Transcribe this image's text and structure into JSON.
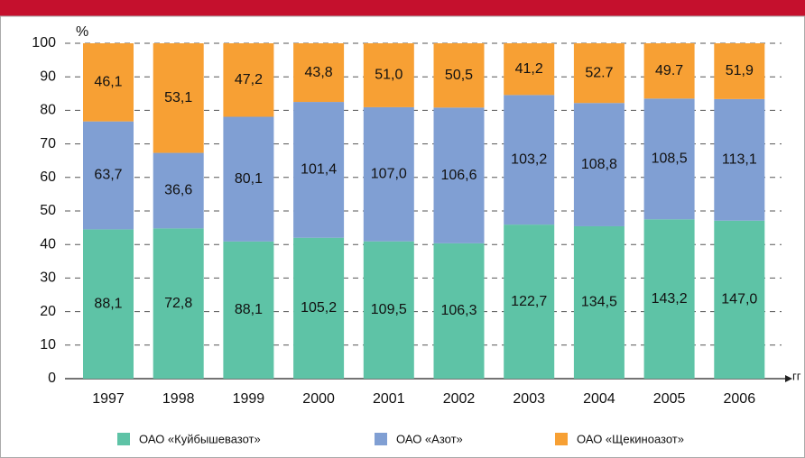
{
  "chart_data": {
    "type": "bar",
    "stacking": "percent",
    "y_unit": "%",
    "x_unit": "гг",
    "categories": [
      "1997",
      "1998",
      "1999",
      "2000",
      "2001",
      "2002",
      "2003",
      "2004",
      "2005",
      "2006"
    ],
    "series": [
      {
        "name": "ОАО «Куйбышевазот»",
        "color": "#5ec3a6",
        "values": [
          88.1,
          72.8,
          88.1,
          105.2,
          109.5,
          106.3,
          122.7,
          134.5,
          143.2,
          147.0
        ],
        "value_labels": [
          "88,1",
          "72,8",
          "88,1",
          "105,2",
          "109,5",
          "106,3",
          "122,7",
          "134,5",
          "143,2",
          "147,0"
        ]
      },
      {
        "name": "ОАО «Азот»",
        "color": "#809fd3",
        "values": [
          63.7,
          36.6,
          80.1,
          101.4,
          107.0,
          106.6,
          103.2,
          108.8,
          108.5,
          113.1
        ],
        "value_labels": [
          "63,7",
          "36,6",
          "80,1",
          "101,4",
          "107,0",
          "106,6",
          "103,2",
          "108,8",
          "108,5",
          "113,1"
        ]
      },
      {
        "name": "ОАО «Щекиноазот»",
        "color": "#f7a034",
        "values": [
          46.1,
          53.1,
          47.2,
          43.8,
          51.0,
          50.5,
          41.2,
          52.7,
          49.7,
          51.9
        ],
        "value_labels": [
          "46,1",
          "53,1",
          "47,2",
          "43,8",
          "51,0",
          "50,5",
          "41,2",
          "52.7",
          "49.7",
          "51,9"
        ]
      }
    ],
    "ylim": [
      0,
      100
    ],
    "yticks": [
      0,
      10,
      20,
      30,
      40,
      50,
      60,
      70,
      80,
      90,
      100
    ],
    "grid": true
  }
}
